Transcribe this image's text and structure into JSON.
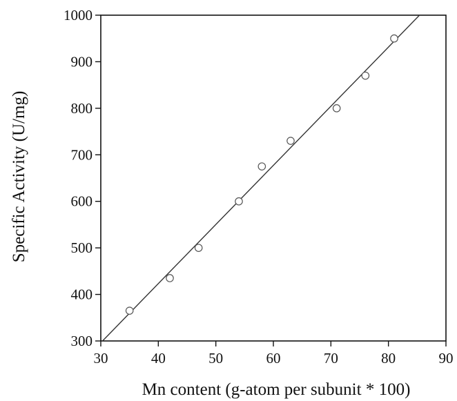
{
  "chart_data": {
    "type": "scatter",
    "title": "",
    "xlabel": "Mn content (g-atom per subunit * 100)",
    "ylabel": "Specific Activity (U/mg)",
    "xlim": [
      30,
      90
    ],
    "ylim": [
      300,
      1000
    ],
    "xticks": [
      30,
      40,
      50,
      60,
      70,
      80,
      90
    ],
    "yticks": [
      300,
      400,
      500,
      600,
      700,
      800,
      900,
      1000
    ],
    "grid": false,
    "series": [
      {
        "marker": "open-circle",
        "x": [
          35,
          42,
          47,
          54,
          58,
          63,
          71,
          76,
          81
        ],
        "y": [
          365,
          435,
          500,
          600,
          675,
          730,
          800,
          870,
          950
        ]
      }
    ],
    "fit_line": {
      "x": [
        30.3,
        85.4
      ],
      "y": [
        300,
        1000
      ]
    },
    "colors": {
      "line": "#333333",
      "marker_stroke": "#555555"
    }
  }
}
